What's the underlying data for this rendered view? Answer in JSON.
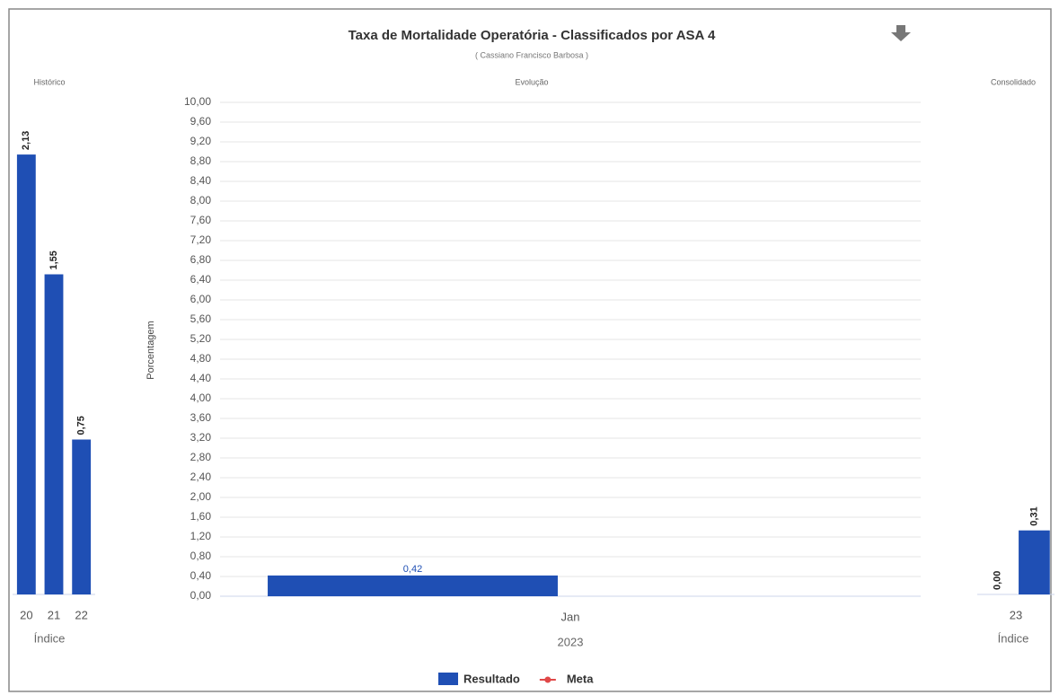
{
  "chart_data": [
    {
      "type": "bar",
      "label": "Histórico",
      "categories": [
        "20",
        "21",
        "22"
      ],
      "values": [
        2.13,
        1.55,
        0.75
      ],
      "value_labels": [
        "2,13",
        "1,55",
        "0,75"
      ],
      "color": "#1f4fb4",
      "xlabel": "Índice",
      "ylim": [
        0,
        2.4
      ]
    },
    {
      "type": "bar",
      "title": "Taxa de Mortalidade Operatória - Classificados por ASA 4",
      "subtitle": "( Cassiano Francisco Barbosa )",
      "label": "Evolução",
      "ylabel": "Porcentagem",
      "categories": [
        "Jan"
      ],
      "x_group_label": "2023",
      "series": [
        {
          "name": "Resultado",
          "color": "#1f4fb4",
          "values": [
            0.42
          ],
          "value_labels": [
            "0,42"
          ]
        },
        {
          "name": "Meta",
          "color": "#e04848",
          "values": [
            null
          ]
        }
      ],
      "ylim": [
        0,
        10
      ],
      "yticks": [
        {
          "value": 0,
          "label": "0,00"
        },
        {
          "value": 0.4,
          "label": "0,40"
        },
        {
          "value": 0.8,
          "label": "0,80"
        },
        {
          "value": 1.2,
          "label": "1,20"
        },
        {
          "value": 1.6,
          "label": "1,60"
        },
        {
          "value": 2.0,
          "label": "2,00"
        },
        {
          "value": 2.4,
          "label": "2,40"
        },
        {
          "value": 2.8,
          "label": "2,80"
        },
        {
          "value": 3.2,
          "label": "3,20"
        },
        {
          "value": 3.6,
          "label": "3,60"
        },
        {
          "value": 4.0,
          "label": "4,00"
        },
        {
          "value": 4.4,
          "label": "4,40"
        },
        {
          "value": 4.8,
          "label": "4,80"
        },
        {
          "value": 5.2,
          "label": "5,20"
        },
        {
          "value": 5.6,
          "label": "5,60"
        },
        {
          "value": 6.0,
          "label": "6,00"
        },
        {
          "value": 6.4,
          "label": "6,40"
        },
        {
          "value": 6.8,
          "label": "6,80"
        },
        {
          "value": 7.2,
          "label": "7,20"
        },
        {
          "value": 7.6,
          "label": "7,60"
        },
        {
          "value": 8.0,
          "label": "8,00"
        },
        {
          "value": 8.4,
          "label": "8,40"
        },
        {
          "value": 8.8,
          "label": "8,80"
        },
        {
          "value": 9.2,
          "label": "9,20"
        },
        {
          "value": 9.6,
          "label": "9,60"
        },
        {
          "value": 10,
          "label": "10,00"
        }
      ],
      "grid": true,
      "legend": "bottom"
    },
    {
      "type": "bar",
      "label": "Consolidado",
      "categories": [
        "23"
      ],
      "series": [
        {
          "color": "#1f4fb4",
          "values": [
            0
          ],
          "value_labels": [
            "0,00"
          ]
        },
        {
          "color": "#1f4fb4",
          "values": [
            0.31
          ],
          "value_labels": [
            "0,31"
          ]
        }
      ],
      "xlabel": "Índice",
      "ylim": [
        0,
        2.4
      ]
    }
  ]
}
